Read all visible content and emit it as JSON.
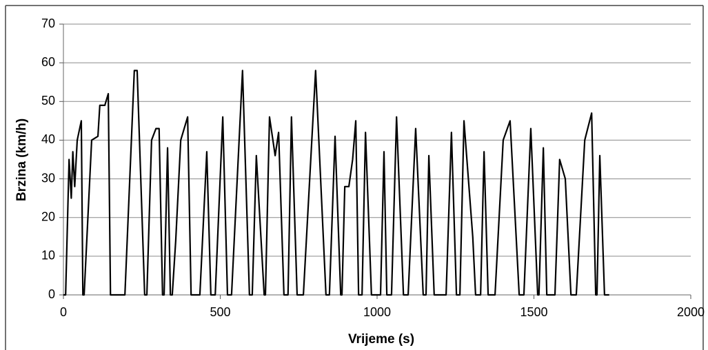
{
  "chart_data": {
    "type": "line",
    "x_label": "Vrijeme (s)",
    "y_label": "Brzina (km/h)",
    "xlim": [
      0,
      2000
    ],
    "xticks": [
      0,
      500,
      1000,
      1500,
      2000
    ],
    "ylim": [
      0,
      70
    ],
    "yticks": [
      0,
      10,
      20,
      30,
      40,
      50,
      60,
      70
    ],
    "grid": true,
    "color": "#000000",
    "x": [
      0,
      7,
      18,
      25,
      30,
      36,
      44,
      57,
      62,
      66,
      90,
      110,
      116,
      132,
      143,
      150,
      196,
      226,
      235,
      259,
      266,
      281,
      295,
      305,
      316,
      321,
      332,
      341,
      347,
      358,
      374,
      396,
      407,
      435,
      457,
      470,
      484,
      508,
      523,
      536,
      571,
      593,
      602,
      615,
      640,
      644,
      657,
      675,
      686,
      703,
      716,
      727,
      745,
      765,
      804,
      837,
      848,
      866,
      884,
      888,
      897,
      910,
      922,
      932,
      941,
      952,
      963,
      982,
      1011,
      1022,
      1031,
      1046,
      1062,
      1084,
      1099,
      1123,
      1147,
      1156,
      1165,
      1182,
      1220,
      1237,
      1253,
      1264,
      1277,
      1305,
      1314,
      1330,
      1341,
      1354,
      1376,
      1402,
      1424,
      1453,
      1468,
      1490,
      1512,
      1516,
      1530,
      1541,
      1567,
      1582,
      1600,
      1618,
      1635,
      1662,
      1684,
      1697,
      1701,
      1710,
      1725,
      1740
    ],
    "y": [
      0,
      0,
      35,
      25,
      37,
      28,
      40,
      45,
      0,
      0,
      40,
      41,
      49,
      49,
      52,
      0,
      0,
      58,
      58,
      0,
      0,
      40,
      43,
      43,
      0,
      0,
      38,
      0,
      0,
      14,
      40,
      46,
      0,
      0,
      37,
      0,
      0,
      46,
      0,
      0,
      58,
      0,
      0,
      36,
      0,
      0,
      46,
      36,
      42,
      0,
      0,
      46,
      0,
      0,
      58,
      0,
      0,
      41,
      0,
      0,
      28,
      28,
      35,
      45,
      0,
      0,
      42,
      0,
      0,
      37,
      0,
      0,
      46,
      0,
      0,
      43,
      0,
      0,
      36,
      0,
      0,
      42,
      0,
      0,
      45,
      15,
      0,
      0,
      37,
      0,
      0,
      40,
      45,
      0,
      0,
      43,
      0,
      0,
      38,
      0,
      0,
      35,
      30,
      0,
      0,
      40,
      47,
      0,
      0,
      36,
      0,
      0
    ]
  }
}
